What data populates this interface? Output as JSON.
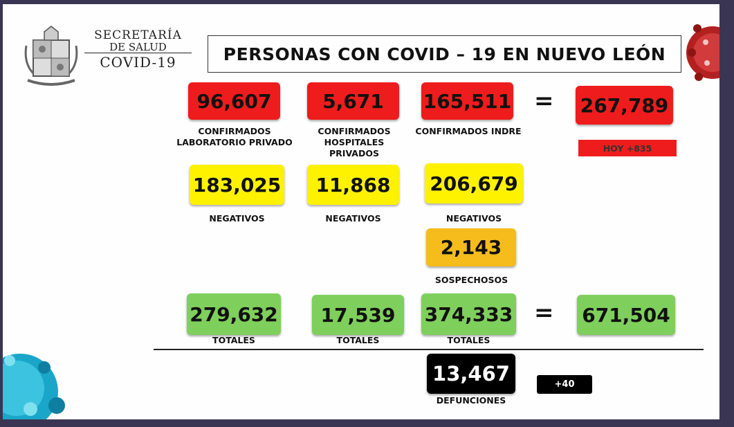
{
  "header": {
    "secretaria": "SECRETARÍA",
    "de_salud": "DE SALUD",
    "covid": "COVID-19",
    "title": "PERSONAS CON COVID – 19 EN NUEVO LEÓN"
  },
  "confirmed": {
    "private_lab": {
      "value": "96,607",
      "label_1": "CONFIRMADOS",
      "label_2": "LABORATORIO PRIVADO"
    },
    "private_hospitals": {
      "value": "5,671",
      "label_1": "CONFIRMADOS",
      "label_2": "HOSPITALES PRIVADOS"
    },
    "indre": {
      "value": "165,511",
      "label": "CONFIRMADOS INDRE"
    },
    "total": {
      "value": "267,789",
      "today": "HOY +835"
    },
    "equals": "="
  },
  "negatives": {
    "private_lab": {
      "value": "183,025",
      "label": "NEGATIVOS"
    },
    "private_hospitals": {
      "value": "11,868",
      "label": "NEGATIVOS"
    },
    "indre": {
      "value": "206,679",
      "label": "NEGATIVOS"
    }
  },
  "suspects": {
    "value": "2,143",
    "label": "SOSPECHOSOS"
  },
  "totals": {
    "private_lab": {
      "value": "279,632",
      "label": "TOTALES"
    },
    "private_hospitals": {
      "value": "17,539",
      "label": "TOTALES"
    },
    "indre": {
      "value": "374,333",
      "label": "TOTALES"
    },
    "grand_total": "671,504",
    "equals": "="
  },
  "deaths": {
    "value": "13,467",
    "label": "DEFUNCIONES",
    "today": "+40"
  },
  "colors": {
    "confirmed": "#ee1c1c",
    "negatives": "#fff200",
    "suspects": "#f6bc1c",
    "totals": "#7fcf5c",
    "deaths": "#000000"
  },
  "icons": [
    "nuevo-leon-coat-of-arms",
    "coronavirus-image"
  ]
}
